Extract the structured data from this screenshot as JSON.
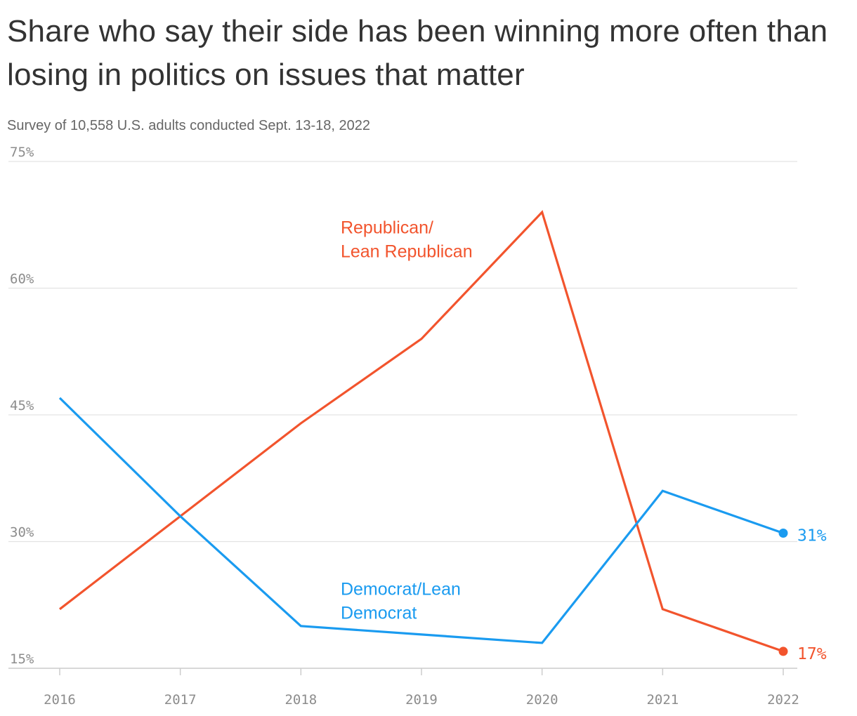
{
  "chart_data": {
    "type": "line",
    "title": "Share who say their side has been winning more often than losing in politics on issues that matter",
    "subtitle": "Survey of 10,558 U.S. adults conducted Sept. 13-18, 2022",
    "x": [
      2016,
      2017,
      2018,
      2019,
      2020,
      2021,
      2022
    ],
    "x_tick_labels": [
      "2016",
      "2017",
      "2018",
      "2019",
      "2020",
      "2021",
      "2022"
    ],
    "y_ticks": [
      15,
      30,
      45,
      60,
      75
    ],
    "y_tick_labels": [
      "15%",
      "30%",
      "45%",
      "60%",
      "75%"
    ],
    "ylim": [
      15,
      75
    ],
    "grid": true,
    "series": [
      {
        "key": "rep",
        "name_lines": [
          "Republican/",
          "Lean Republican"
        ],
        "color": "#f2542d",
        "values": [
          22,
          33,
          44,
          54,
          69,
          22,
          17
        ],
        "end_label": "17%"
      },
      {
        "key": "dem",
        "name_lines": [
          "Democrat/Lean",
          "Democrat"
        ],
        "color": "#1a9bf0",
        "values": [
          47,
          33,
          20,
          19,
          18,
          36,
          31
        ],
        "end_label": "31%"
      }
    ]
  }
}
